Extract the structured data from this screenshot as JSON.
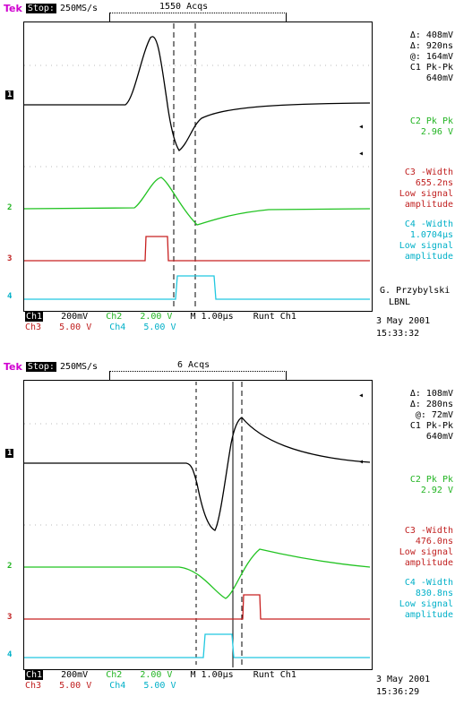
{
  "panels": [
    {
      "brand": "Tek",
      "mode": "Stop:",
      "rate": "250MS/s",
      "acqs": "1550 Acqs",
      "cursor": {
        "dv": "Δ: 408mV",
        "dt": "Δ: 920ns",
        "at": "@: 164mV"
      },
      "meas": [
        {
          "label": "C1 Pk-Pk",
          "value": "640mV"
        },
        {
          "label": "C2 Pk  Pk",
          "value": "2.96 V"
        },
        {
          "label": "C3 -Width",
          "value": "655.2ns",
          "note1": "Low signal",
          "note2": "amplitude"
        },
        {
          "label": "C4 -Width",
          "value": "1.0704μs",
          "note1": "Low signal",
          "note2": "amplitude"
        }
      ],
      "credit1": "G. Przybylski",
      "credit2": "LBNL",
      "footer1": {
        "ch1": "Ch1",
        "v1": "200mV",
        "ch2": "Ch2",
        "v2": "2.00 V",
        "m": "M 1.00μs",
        "trig": "Runt  Ch1"
      },
      "footer2": {
        "ch3": "Ch3",
        "v3": "5.00 V",
        "ch4": "Ch4",
        "v4": "5.00 V"
      },
      "date": "3 May 2001",
      "time": "15:33:32",
      "markers": {
        "c1": "1",
        "c2": "2",
        "c3": "3",
        "c4": "4"
      }
    },
    {
      "brand": "Tek",
      "mode": "Stop:",
      "rate": "250MS/s",
      "acqs": "6 Acqs",
      "cursor": {
        "dv": "Δ: 108mV",
        "dt": "Δ: 280ns",
        "at": "@: 72mV"
      },
      "meas": [
        {
          "label": "C1 Pk-Pk",
          "value": "640mV"
        },
        {
          "label": "C2 Pk  Pk",
          "value": "2.92 V"
        },
        {
          "label": "C3 -Width",
          "value": "476.0ns",
          "note1": "Low signal",
          "note2": "amplitude"
        },
        {
          "label": "C4 -Width",
          "value": "830.8ns",
          "note1": "Low signal",
          "note2": "amplitude"
        }
      ],
      "footer1": {
        "ch1": "Ch1",
        "v1": "200mV",
        "ch2": "Ch2",
        "v2": "2.00 V",
        "m": "M 1.00μs",
        "trig": "Runt  Ch1"
      },
      "footer2": {
        "ch3": "Ch3",
        "v3": "5.00 V",
        "ch4": "Ch4",
        "v4": "5.00 V"
      },
      "date": "3 May 2001",
      "time": "15:36:29",
      "markers": {
        "c1": "1",
        "c2": "2",
        "c3": "3",
        "c4": "4"
      }
    }
  ],
  "colors": {
    "ch1": "#000000",
    "ch2": "#22c322",
    "ch3": "#c82020",
    "ch4": "#20c8e0",
    "brand": "#d000d0"
  }
}
